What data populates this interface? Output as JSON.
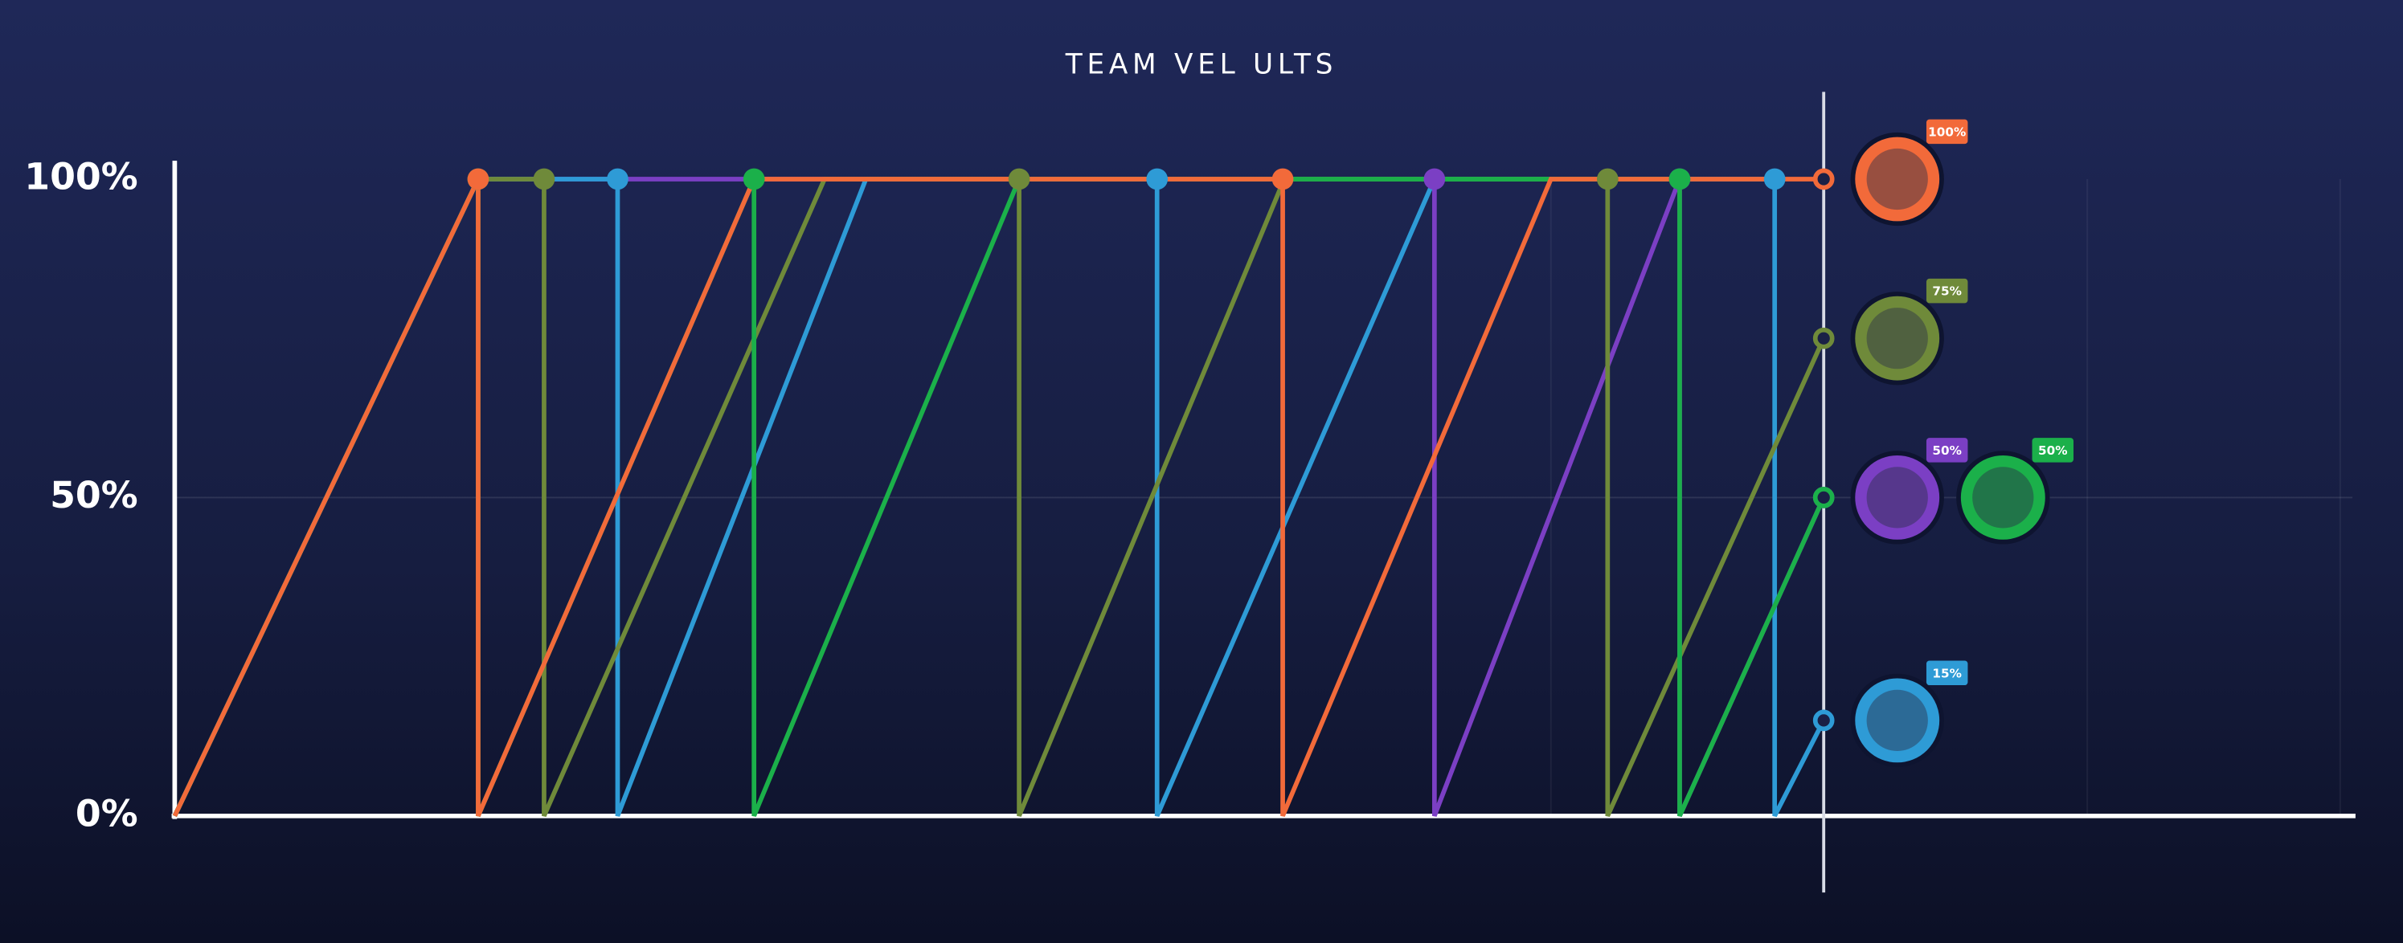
{
  "chart_data": {
    "type": "line",
    "title": "TEAM VEL ULTS",
    "ylim": [
      0,
      100
    ],
    "yticks": [
      {
        "value": 0,
        "label": "0%"
      },
      {
        "value": 50,
        "label": "50%"
      },
      {
        "value": 100,
        "label": "100%"
      }
    ],
    "xlim": [
      0,
      1421
    ],
    "now": 1076,
    "grid": true,
    "series": [
      {
        "color": "#7b3fc4",
        "badge": "50%",
        "x": [
          0,
          198,
          822,
          822,
          982,
          982,
          1076
        ],
        "values": [
          0,
          100,
          100,
          0,
          100,
          0,
          50
        ]
      },
      {
        "color": "#2e9bd6",
        "badge": "15%",
        "x": [
          0,
          198,
          289,
          289,
          451,
          641,
          641,
          822,
          1044,
          1044,
          1076
        ],
        "values": [
          0,
          100,
          100,
          0,
          100,
          100,
          0,
          100,
          100,
          0,
          15
        ]
      },
      {
        "color": "#6f8a3a",
        "badge": "75%",
        "x": [
          0,
          198,
          241,
          241,
          424,
          551,
          551,
          724,
          935,
          935,
          1076
        ],
        "values": [
          0,
          100,
          100,
          0,
          100,
          100,
          0,
          100,
          100,
          0,
          75
        ]
      },
      {
        "color": "#1bb04a",
        "badge": "50%",
        "x": [
          0,
          198,
          198,
          378,
          378,
          551,
          982,
          982,
          1076
        ],
        "values": [
          0,
          100,
          0,
          100,
          0,
          100,
          100,
          0,
          50
        ]
      },
      {
        "color": "#f26a3a",
        "badge": "100%",
        "x": [
          0,
          198,
          198,
          378,
          723,
          723,
          898,
          1076
        ],
        "values": [
          0,
          100,
          0,
          100,
          100,
          0,
          100,
          100
        ]
      }
    ]
  }
}
